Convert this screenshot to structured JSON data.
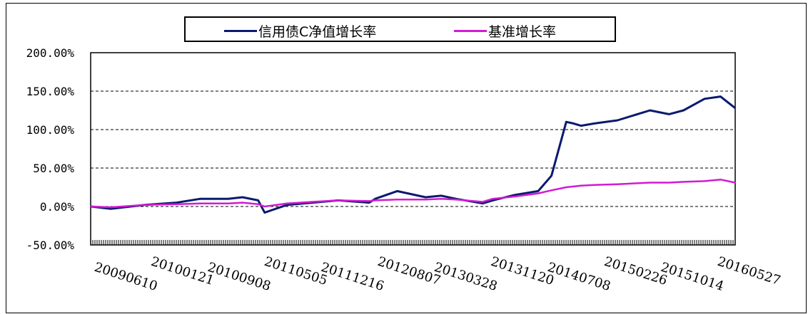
{
  "chart_data": {
    "type": "line",
    "title": "",
    "xlabel": "",
    "ylabel": "",
    "ylim": [
      -50,
      200
    ],
    "y_ticks": [
      "200.00%",
      "150.00%",
      "100.00%",
      "50.00%",
      "0.00%",
      "-50.00%"
    ],
    "y_tick_values": [
      200,
      150,
      100,
      50,
      0,
      -50
    ],
    "x_tick_labels": [
      "20090610",
      "20100121",
      "20100908",
      "20110505",
      "20111216",
      "20120807",
      "20130328",
      "20131120",
      "20140708",
      "20150226",
      "20151014",
      "20160527"
    ],
    "grid": "horizontal-dashed",
    "legend_placement": "top-center",
    "series": [
      {
        "name": "信用债C净值增长率",
        "color": "#0a1a6e",
        "x": [
          "20090610",
          "20090901",
          "20100121",
          "20100601",
          "20100908",
          "20110101",
          "20110301",
          "20110505",
          "20110601",
          "20110901",
          "20111216",
          "20120401",
          "20120807",
          "20120901",
          "20121201",
          "20130328",
          "20130601",
          "20130801",
          "20131120",
          "20140101",
          "20140401",
          "20140708",
          "20140901",
          "20141101",
          "20141201",
          "20150101",
          "20150226",
          "20150601",
          "20151014",
          "20160101",
          "20160301",
          "20160527",
          "20160801",
          "20161001"
        ],
        "values": [
          0,
          -3,
          2,
          5,
          10,
          10,
          12,
          8,
          -8,
          2,
          5,
          8,
          5,
          10,
          20,
          12,
          14,
          10,
          4,
          8,
          15,
          20,
          40,
          110,
          108,
          105,
          108,
          112,
          125,
          120,
          125,
          140,
          143,
          128
        ]
      },
      {
        "name": "基准增长率",
        "color": "#d21ad2",
        "x": [
          "20090610",
          "20090901",
          "20100121",
          "20100601",
          "20100908",
          "20110101",
          "20110301",
          "20110505",
          "20110601",
          "20110901",
          "20111216",
          "20120401",
          "20120807",
          "20120901",
          "20121201",
          "20130328",
          "20130601",
          "20130801",
          "20131120",
          "20140101",
          "20140401",
          "20140708",
          "20140901",
          "20141101",
          "20141201",
          "20150101",
          "20150226",
          "20150601",
          "20151014",
          "20160101",
          "20160301",
          "20160527",
          "20160801",
          "20161001"
        ],
        "values": [
          0,
          -1,
          2,
          3,
          4,
          4,
          5,
          3,
          0,
          4,
          6,
          8,
          7,
          8,
          9,
          9,
          10,
          9,
          6,
          10,
          13,
          17,
          21,
          25,
          26,
          27,
          28,
          29,
          31,
          31,
          32,
          33,
          35,
          31
        ]
      }
    ]
  }
}
